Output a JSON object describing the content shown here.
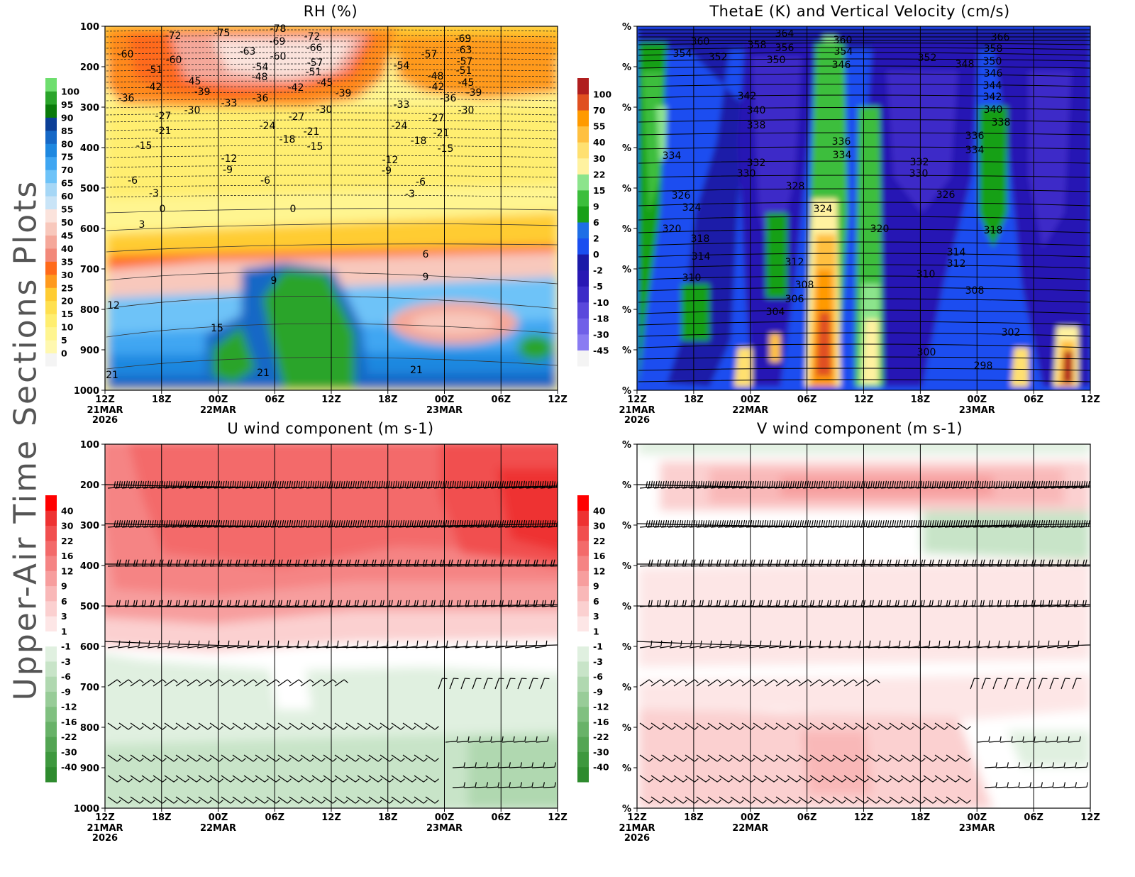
{
  "page_title": "Upper-Air Time Sections Plots",
  "time_axis": {
    "ticks": [
      "12Z",
      "18Z",
      "00Z",
      "06Z",
      "12Z",
      "18Z",
      "00Z",
      "06Z",
      "12Z"
    ],
    "date_labels": [
      {
        "tick_index": 0,
        "lines": [
          "21MAR",
          "2026"
        ]
      },
      {
        "tick_index": 2,
        "lines": [
          "22MAR"
        ]
      },
      {
        "tick_index": 6,
        "lines": [
          "23MAR"
        ]
      }
    ]
  },
  "chart_data": [
    {
      "id": "rh",
      "type": "heatmap",
      "title": "RH (%)",
      "yaxis_ticks": [
        "100",
        "200",
        "300",
        "400",
        "500",
        "600",
        "700",
        "800",
        "900",
        "1000"
      ],
      "ylim": [
        100,
        1000
      ],
      "legend_levels": [
        "0",
        "5",
        "10",
        "15",
        "20",
        "25",
        "30",
        "35",
        "40",
        "45",
        "50",
        "55",
        "60",
        "65",
        "70",
        "75",
        "80",
        "85",
        "90",
        "95",
        "100"
      ],
      "legend_colors": [
        "#f4f4f4",
        "#fff8b0",
        "#fff590",
        "#ffee70",
        "#ffe050",
        "#ffcc33",
        "#ff9a1e",
        "#ff6a1a",
        "#f2897a",
        "#f5a89a",
        "#f8c8bc",
        "#fbe3dc",
        "#c9e4f7",
        "#a6d7f6",
        "#6ec3f8",
        "#3fa6f2",
        "#1e88e0",
        "#1668c6",
        "#0c3f96",
        "#0a7a0a",
        "#2aa42a",
        "#6ede6e"
      ],
      "contour_labels": [
        "-78",
        "-75",
        "-72",
        "-72",
        "-69",
        "-69",
        "-66",
        "-63",
        "-63",
        "-60",
        "-60",
        "-60",
        "-57",
        "-57",
        "-57",
        "-54",
        "-54",
        "-51",
        "-51",
        "-51",
        "-48",
        "-48",
        "-45",
        "-45",
        "-45",
        "-42",
        "-42",
        "-42",
        "-39",
        "-39",
        "-39",
        "-36",
        "-36",
        "-36",
        "-33",
        "-33",
        "-30",
        "-30",
        "-30",
        "-27",
        "-27",
        "-27",
        "-24",
        "-24",
        "-21",
        "-21",
        "-21",
        "-18",
        "-18",
        "-15",
        "-15",
        "-15",
        "-12",
        "-12",
        "-9",
        "-9",
        "-6",
        "-6",
        "-6",
        "-3",
        "-3",
        "0",
        "0",
        "3",
        "6",
        "9",
        "9",
        "12",
        "15",
        "21",
        "21",
        "21"
      ]
    },
    {
      "id": "thetae",
      "type": "heatmap",
      "title": "ThetaE (K) and Vertical Velocity (cm/s)",
      "yaxis_ticks": [
        "%",
        "%",
        "%",
        "%",
        "%",
        "%",
        "%",
        "%",
        "%",
        "%"
      ],
      "legend_levels": [
        "-45",
        "-30",
        "-18",
        "-10",
        "-5",
        "-2",
        "0",
        "2",
        "6",
        "9",
        "15",
        "22",
        "30",
        "40",
        "55",
        "70",
        "100"
      ],
      "legend_colors": [
        "#f4f4f4",
        "#8a7cf2",
        "#7060e8",
        "#5a48dc",
        "#3c2cc8",
        "#2818b4",
        "#1a1aa8",
        "#1a4ef0",
        "#1e6ee6",
        "#18a018",
        "#3cbe3c",
        "#8ce48c",
        "#fff2a0",
        "#ffe070",
        "#ffc040",
        "#ff9a00",
        "#e05020",
        "#b01e1e"
      ],
      "contour_labels": [
        "366",
        "364",
        "360",
        "360",
        "358",
        "358",
        "356",
        "354",
        "354",
        "352",
        "352",
        "350",
        "350",
        "348",
        "346",
        "346",
        "344",
        "342",
        "342",
        "340",
        "340",
        "338",
        "338",
        "336",
        "336",
        "334",
        "334",
        "334",
        "332",
        "332",
        "330",
        "330",
        "328",
        "326",
        "326",
        "324",
        "324",
        "320",
        "320",
        "318",
        "318",
        "314",
        "314",
        "312",
        "312",
        "310",
        "310",
        "308",
        "308",
        "306",
        "304",
        "302",
        "300",
        "298"
      ]
    },
    {
      "id": "uwind",
      "type": "heatmap",
      "title": "U wind component (m s-1)",
      "yaxis_ticks": [
        "100",
        "200",
        "300",
        "400",
        "500",
        "600",
        "700",
        "800",
        "900",
        "1000"
      ],
      "ylim": [
        100,
        1000
      ],
      "legend_levels": [
        "-40",
        "-30",
        "-22",
        "-16",
        "-12",
        "-9",
        "-6",
        "-3",
        "-1",
        "1",
        "3",
        "6",
        "9",
        "12",
        "16",
        "22",
        "30",
        "40"
      ],
      "legend_colors": [
        "#2e8b2e",
        "#3e983e",
        "#53a553",
        "#68b268",
        "#80c080",
        "#98cc98",
        "#b0d8b0",
        "#c8e4c8",
        "#e0f0e0",
        "#ffffff",
        "#fde6e6",
        "#fbd0d0",
        "#f9b8b8",
        "#f79e9e",
        "#f58484",
        "#f36a6a",
        "#f14f4f",
        "#ee3232",
        "#ff0000"
      ]
    },
    {
      "id": "vwind",
      "type": "heatmap",
      "title": "V wind component (m s-1)",
      "yaxis_ticks": [
        "%",
        "%",
        "%",
        "%",
        "%",
        "%",
        "%",
        "%",
        "%",
        "%"
      ],
      "legend_levels": [
        "-40",
        "-30",
        "-22",
        "-16",
        "-12",
        "-9",
        "-6",
        "-3",
        "-1",
        "1",
        "3",
        "6",
        "9",
        "12",
        "16",
        "22",
        "30",
        "40"
      ],
      "legend_colors": [
        "#2e8b2e",
        "#3e983e",
        "#53a553",
        "#68b268",
        "#80c080",
        "#98cc98",
        "#b0d8b0",
        "#c8e4c8",
        "#e0f0e0",
        "#ffffff",
        "#fde6e6",
        "#fbd0d0",
        "#f9b8b8",
        "#f79e9e",
        "#f58484",
        "#f36a6a",
        "#f14f4f",
        "#ee3232",
        "#ff0000"
      ]
    }
  ]
}
